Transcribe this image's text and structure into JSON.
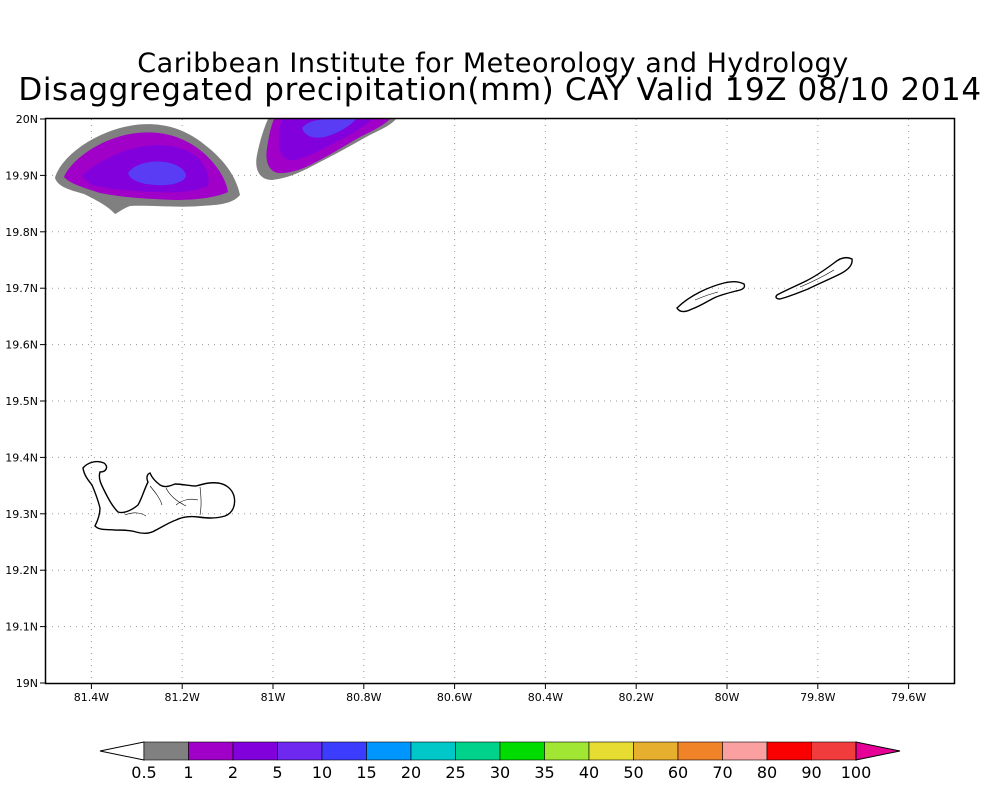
{
  "title": "Caribbean Institute for Meteorology and Hydrology",
  "subtitle": "Disaggregated precipitation(mm) CAY Valid 19Z 08/10 2014",
  "map": {
    "lon_range": [
      -81.5,
      -79.5
    ],
    "lat_range": [
      19.0,
      20.0
    ],
    "grid": "dotted",
    "x_ticks": [
      "81.4W",
      "81.2W",
      "81W",
      "80.8W",
      "80.6W",
      "80.4W",
      "80.2W",
      "80W",
      "79.8W",
      "79.6W"
    ],
    "y_ticks": [
      "20N",
      "19.9N",
      "19.8N",
      "19.7N",
      "19.6N",
      "19.5N",
      "19.4N",
      "19.3N",
      "19.2N",
      "19.1N",
      "19N"
    ],
    "precip_areas": [
      {
        "name": "west-cell",
        "center_lon": -81.27,
        "center_lat": 19.9,
        "max_class": "5-10"
      },
      {
        "name": "north-cell",
        "center_lon": -80.9,
        "center_lat": 19.99,
        "max_class": "5-10"
      }
    ],
    "islands": [
      "Grand Cayman",
      "Little Cayman",
      "Cayman Brac"
    ]
  },
  "colorbar": {
    "labels": [
      "0.5",
      "1",
      "2",
      "5",
      "10",
      "15",
      "20",
      "25",
      "30",
      "35",
      "40",
      "50",
      "60",
      "70",
      "80",
      "90",
      "100"
    ],
    "colors": [
      "#ffffff",
      "#808080",
      "#a000c8",
      "#8200dc",
      "#6e28f0",
      "#3c3cff",
      "#0096ff",
      "#00c8c8",
      "#00d28c",
      "#00dc00",
      "#a0e632",
      "#e6dc32",
      "#e6af2d",
      "#f08228",
      "#faa0a0",
      "#fa0000",
      "#f03c3c",
      "#e60096"
    ]
  }
}
